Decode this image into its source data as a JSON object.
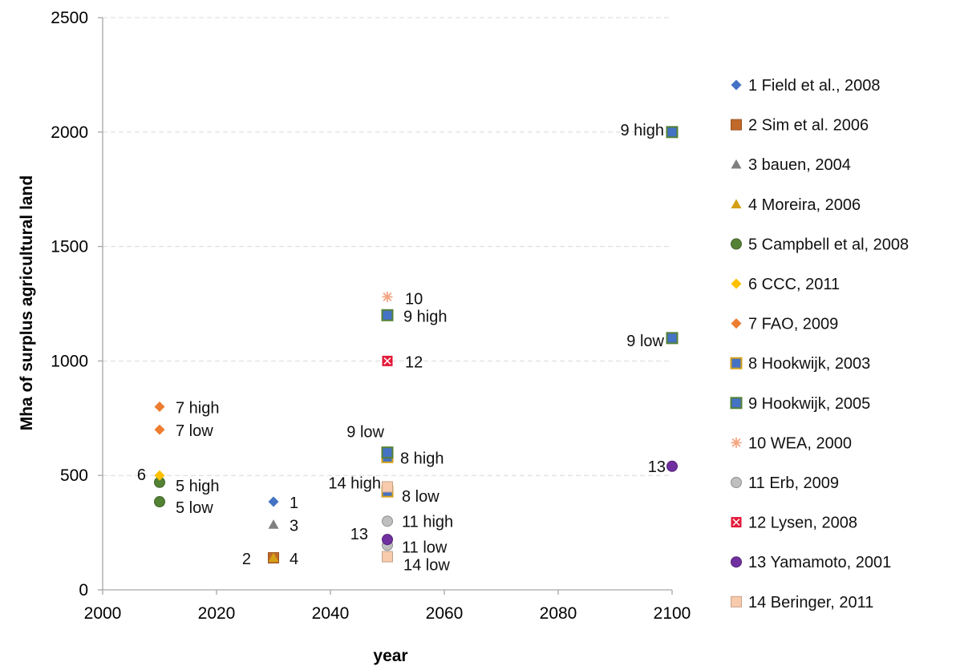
{
  "chart_data": {
    "type": "scatter",
    "title": "",
    "xlabel": "year",
    "ylabel": "Mha of surplus agricultural land",
    "xlim": [
      2000,
      2100
    ],
    "ylim": [
      0,
      2500
    ],
    "xticks": [
      2000,
      2020,
      2040,
      2060,
      2080,
      2100
    ],
    "yticks": [
      0,
      500,
      1000,
      1500,
      2000,
      2500
    ],
    "grid": "horizontal dashed",
    "legend_position": "right",
    "series": [
      {
        "name": "1 Field et al., 2008",
        "marker": "diamond",
        "color": "#4472C4",
        "points": [
          {
            "x": 2030,
            "y": 385,
            "label": "1"
          }
        ]
      },
      {
        "name": "2 Sim et al. 2006",
        "marker": "square",
        "color": "#C0692A",
        "points": [
          {
            "x": 2030,
            "y": 140,
            "label": "2"
          }
        ]
      },
      {
        "name": "3 bauen, 2004",
        "marker": "triangle",
        "color": "#808080",
        "points": [
          {
            "x": 2030,
            "y": 285,
            "label": "3"
          }
        ]
      },
      {
        "name": "4 Moreira, 2006",
        "marker": "triangle",
        "color": "#D4A017",
        "points": [
          {
            "x": 2030,
            "y": 140,
            "label": "4"
          }
        ]
      },
      {
        "name": "5 Campbell et al, 2008",
        "marker": "circle",
        "color": "#548235",
        "points": [
          {
            "x": 2010,
            "y": 470,
            "label": "5 high"
          },
          {
            "x": 2010,
            "y": 385,
            "label": "5 low"
          }
        ]
      },
      {
        "name": "6 CCC, 2011",
        "marker": "diamond",
        "color": "#FFC000",
        "points": [
          {
            "x": 2010,
            "y": 500,
            "label": "6"
          }
        ]
      },
      {
        "name": "7 FAO, 2009",
        "marker": "diamond",
        "color": "#ED7D31",
        "points": [
          {
            "x": 2010,
            "y": 800,
            "label": "7 high"
          },
          {
            "x": 2010,
            "y": 700,
            "label": "7 low"
          }
        ]
      },
      {
        "name": "8 Hookwijk, 2003",
        "marker": "square",
        "color": "#4472C4",
        "edge": "#D4A017",
        "points": [
          {
            "x": 2050,
            "y": 580,
            "label": "8 high"
          },
          {
            "x": 2050,
            "y": 430,
            "label": "8 low"
          }
        ]
      },
      {
        "name": "9 Hookwijk, 2005",
        "marker": "square",
        "color": "#4472C4",
        "edge": "#548235",
        "points": [
          {
            "x": 2050,
            "y": 1200,
            "label": "9 high"
          },
          {
            "x": 2050,
            "y": 600,
            "label": "9 low"
          },
          {
            "x": 2100,
            "y": 2000,
            "label": "9 high"
          },
          {
            "x": 2100,
            "y": 1100,
            "label": "9 low"
          }
        ]
      },
      {
        "name": "10 WEA, 2000",
        "marker": "asterisk",
        "color": "#F4A582",
        "points": [
          {
            "x": 2050,
            "y": 1280,
            "label": "10"
          }
        ]
      },
      {
        "name": "11 Erb, 2009",
        "marker": "circle",
        "color": "#BFBFBF",
        "points": [
          {
            "x": 2050,
            "y": 300,
            "label": "11 high"
          },
          {
            "x": 2050,
            "y": 195,
            "label": "11 low"
          }
        ]
      },
      {
        "name": "12 Lysen, 2008",
        "marker": "square-x",
        "color": "#E31A3A",
        "points": [
          {
            "x": 2050,
            "y": 1000,
            "label": "12"
          }
        ]
      },
      {
        "name": "13 Yamamoto, 2001",
        "marker": "circle",
        "color": "#7030A0",
        "points": [
          {
            "x": 2050,
            "y": 220,
            "label": "13"
          },
          {
            "x": 2100,
            "y": 540,
            "label": "13"
          }
        ]
      },
      {
        "name": "14 Beringer, 2011",
        "marker": "square",
        "color": "#F8CBAD",
        "points": [
          {
            "x": 2050,
            "y": 450,
            "label": "14 high"
          },
          {
            "x": 2050,
            "y": 145,
            "label": "14 low"
          }
        ]
      }
    ]
  }
}
